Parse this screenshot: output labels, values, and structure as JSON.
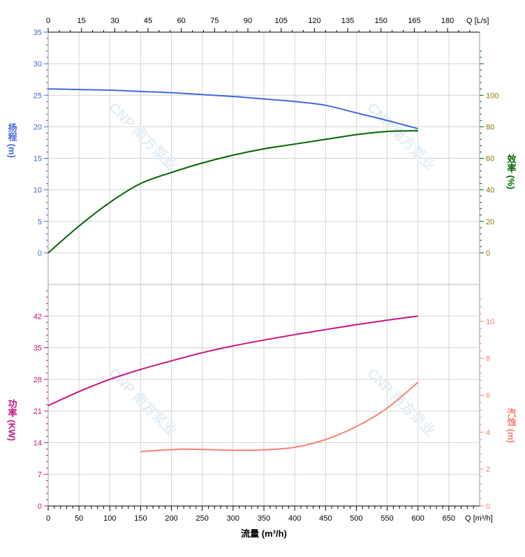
{
  "chart_data": [
    {
      "type": "line",
      "panel": "upper",
      "x_axis_bottom": {
        "label": "流量 (m³/h)",
        "unit_label": "Q [m³/h]",
        "range": [
          0,
          700
        ],
        "ticks": [
          0,
          50,
          100,
          150,
          200,
          250,
          300,
          350,
          400,
          450,
          500,
          550,
          600,
          650
        ]
      },
      "x_axis_top": {
        "unit_label": "Q [L/s]",
        "range": [
          0,
          194.44
        ],
        "ticks": [
          0,
          15,
          30,
          45,
          60,
          75,
          90,
          105,
          120,
          135,
          150,
          165,
          180
        ]
      },
      "y_left": {
        "label": "扬程 (m)",
        "label_chars": [
          "扬",
          "程",
          "(m)"
        ],
        "range": [
          -5,
          35
        ],
        "ticks": [
          0,
          5,
          10,
          15,
          20,
          25,
          30,
          35
        ],
        "color": "#4169e1"
      },
      "y_right": {
        "label": "效率 (%)",
        "label_chars": [
          "效",
          "率",
          "(%)"
        ],
        "range": [
          -20,
          140
        ],
        "ticks": [
          0,
          20,
          40,
          60,
          80,
          100
        ],
        "color": "#006400"
      },
      "series": [
        {
          "name": "扬程",
          "axis": "left",
          "color": "#4169e1",
          "x": [
            0,
            50,
            100,
            150,
            200,
            250,
            300,
            350,
            400,
            450,
            500,
            550,
            600
          ],
          "y": [
            26.0,
            25.9,
            25.8,
            25.6,
            25.4,
            25.1,
            24.8,
            24.4,
            24.0,
            23.4,
            22.2,
            21.0,
            19.7
          ]
        },
        {
          "name": "效率",
          "axis": "right",
          "color": "#006400",
          "x": [
            0,
            50,
            100,
            150,
            200,
            250,
            300,
            350,
            400,
            450,
            500,
            550,
            600
          ],
          "y": [
            0,
            17,
            32,
            44,
            51,
            57,
            62,
            66,
            69,
            72,
            75,
            77,
            77.5
          ]
        }
      ],
      "grid": true
    },
    {
      "type": "line",
      "panel": "lower",
      "y_left": {
        "label": "功率 (KW)",
        "label_chars": [
          "功",
          "率",
          "(KW)"
        ],
        "range": [
          0,
          49
        ],
        "ticks": [
          0,
          7,
          14,
          21,
          28,
          35,
          42
        ],
        "color": "#c71585"
      },
      "y_right": {
        "label": "汽蚀 (m)",
        "label_chars": [
          "汽",
          "蚀",
          "(m)"
        ],
        "range": [
          0,
          12
        ],
        "ticks": [
          0,
          2,
          4,
          6,
          8,
          10
        ],
        "color": "#fa8072"
      },
      "series": [
        {
          "name": "功率",
          "axis": "left",
          "color": "#c71585",
          "x": [
            0,
            50,
            100,
            150,
            200,
            250,
            300,
            350,
            400,
            450,
            500,
            550,
            600
          ],
          "y": [
            22.2,
            25.3,
            28.0,
            30.2,
            32.1,
            33.9,
            35.4,
            36.7,
            37.9,
            39.0,
            40.1,
            41.1,
            42.0
          ]
        },
        {
          "name": "汽蚀",
          "axis": "right",
          "color": "#fa8072",
          "x": [
            150,
            200,
            220,
            250,
            300,
            350,
            400,
            450,
            500,
            550,
            600
          ],
          "y": [
            2.95,
            3.05,
            3.08,
            3.06,
            3.02,
            3.04,
            3.18,
            3.6,
            4.3,
            5.3,
            6.7
          ]
        }
      ],
      "grid": true
    }
  ],
  "watermark": "CNP 南方泵业",
  "colors": {
    "grid": "#d3d3d3",
    "right_tick_text_upper": "#8b7a00"
  }
}
